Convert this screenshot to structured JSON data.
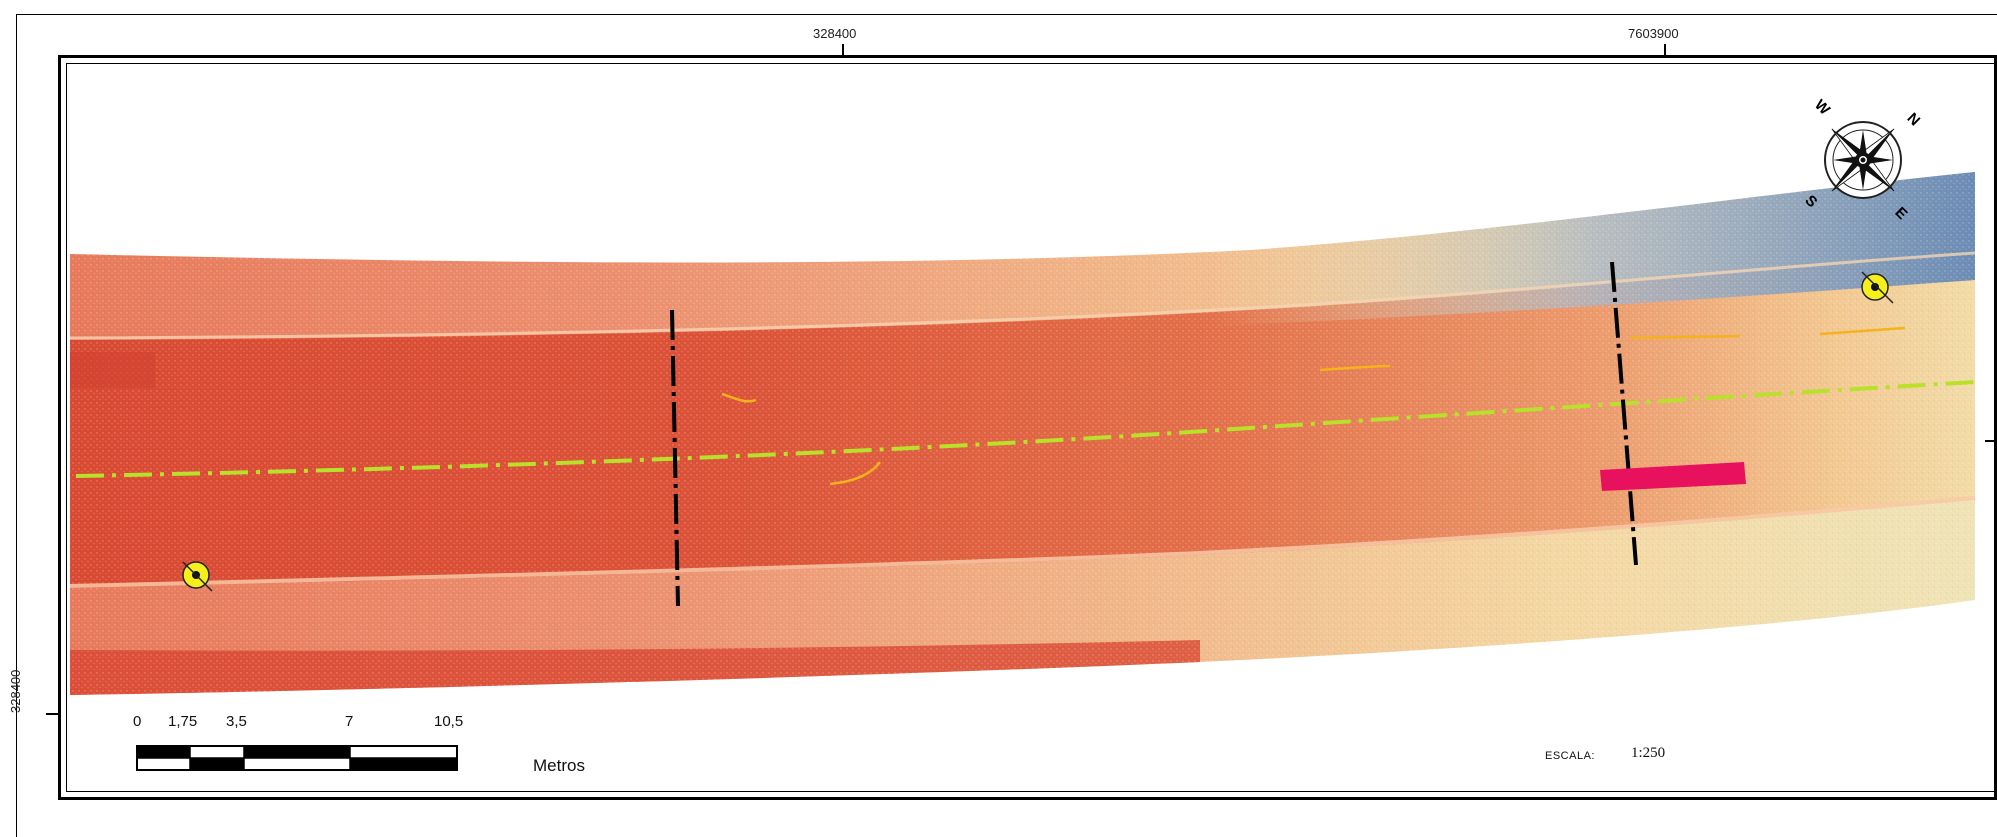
{
  "grid_labels": {
    "top_left": "328400",
    "top_right": "7603900",
    "left_side": "328400"
  },
  "scale_bar": {
    "ticks": [
      "0",
      "1,75",
      "3,5",
      "7",
      "10,5"
    ],
    "unit": "Metros"
  },
  "scale": {
    "label": "ESCALA:",
    "value": "1:250"
  },
  "north_arrow": {
    "labels": {
      "n": "N",
      "e": "E",
      "s": "S",
      "w": "W"
    }
  },
  "colors": {
    "raster_low": "#d9452f",
    "raster_mid": "#f0a06a",
    "raster_high": "#f5e6b0",
    "raster_top": "#6d8fb8",
    "centerline": "#b9e02a",
    "section_line": "#000000",
    "highlight_bar": "#e8115d",
    "crack_lines": "#f5b21c",
    "control_point": "#f6ef1c"
  }
}
